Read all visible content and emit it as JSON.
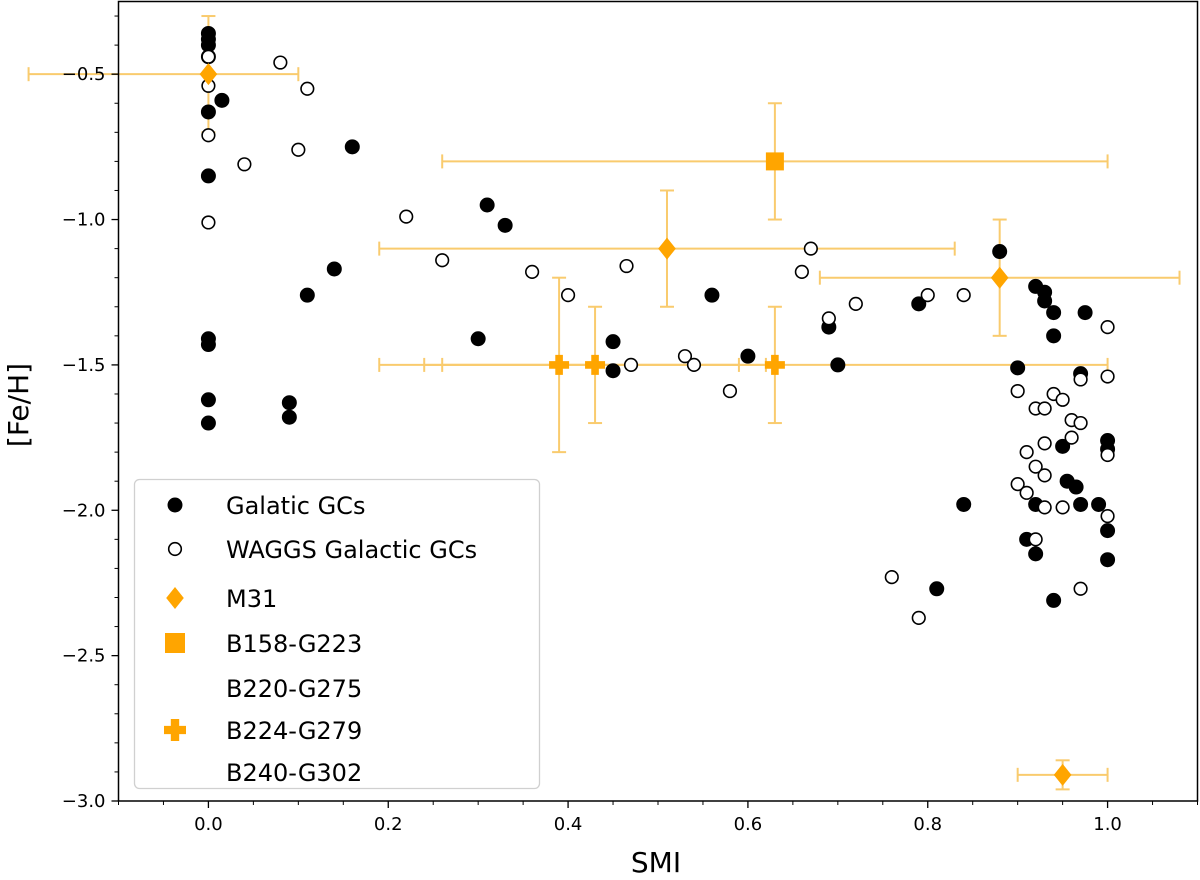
{
  "chart_data": {
    "type": "scatter",
    "xlabel": "SMI",
    "ylabel": "[Fe/H]",
    "xlim": [
      -0.1,
      1.1
    ],
    "ylim": [
      -3.0,
      -0.25
    ],
    "x_ticks": [
      "0.0",
      "0.2",
      "0.4",
      "0.6",
      "0.8",
      "1.0"
    ],
    "y_ticks": [
      "−3.0",
      "−2.5",
      "−2.0",
      "−1.5",
      "−1.0",
      "−0.5"
    ],
    "grid": false,
    "legend_position": "lower-left",
    "colors": {
      "black": "#000000",
      "orange": "#FFA500",
      "errorbar": "#F9CB6E"
    },
    "series": [
      {
        "name": "Galatic GCs",
        "marker": "filled-circle",
        "points": [
          [
            0.0,
            -0.36
          ],
          [
            0.0,
            -0.38
          ],
          [
            0.0,
            -0.4
          ],
          [
            0.0,
            -0.44
          ],
          [
            0.0,
            -0.63
          ],
          [
            0.015,
            -0.59
          ],
          [
            0.0,
            -0.85
          ],
          [
            0.0,
            -1.41
          ],
          [
            0.0,
            -1.43
          ],
          [
            0.0,
            -1.62
          ],
          [
            0.0,
            -1.7
          ],
          [
            0.09,
            -1.63
          ],
          [
            0.09,
            -1.68
          ],
          [
            0.11,
            -1.26
          ],
          [
            0.14,
            -1.17
          ],
          [
            0.16,
            -0.75
          ],
          [
            0.3,
            -1.41
          ],
          [
            0.31,
            -0.95
          ],
          [
            0.33,
            -1.02
          ],
          [
            0.45,
            -1.42
          ],
          [
            0.45,
            -1.52
          ],
          [
            0.56,
            -1.26
          ],
          [
            0.6,
            -1.47
          ],
          [
            0.69,
            -1.37
          ],
          [
            0.7,
            -1.5
          ],
          [
            0.79,
            -1.29
          ],
          [
            0.81,
            -2.27
          ],
          [
            0.84,
            -1.98
          ],
          [
            0.88,
            -1.11
          ],
          [
            0.9,
            -1.51
          ],
          [
            0.91,
            -2.1
          ],
          [
            0.92,
            -1.23
          ],
          [
            0.93,
            -1.25
          ],
          [
            0.93,
            -1.28
          ],
          [
            0.92,
            -1.98
          ],
          [
            0.92,
            -2.15
          ],
          [
            0.94,
            -1.32
          ],
          [
            0.94,
            -1.4
          ],
          [
            0.95,
            -1.78
          ],
          [
            0.955,
            -1.9
          ],
          [
            0.965,
            -1.92
          ],
          [
            0.97,
            -1.53
          ],
          [
            0.97,
            -1.98
          ],
          [
            0.975,
            -1.32
          ],
          [
            0.99,
            -1.98
          ],
          [
            1.0,
            -1.76
          ],
          [
            1.0,
            -1.79
          ],
          [
            1.0,
            -2.07
          ],
          [
            1.0,
            -2.17
          ],
          [
            0.94,
            -2.31
          ]
        ]
      },
      {
        "name": "WAGGS Galactic GCs",
        "marker": "open-circle",
        "points": [
          [
            0.0,
            -0.44
          ],
          [
            0.0,
            -0.54
          ],
          [
            0.0,
            -0.71
          ],
          [
            0.0,
            -1.01
          ],
          [
            0.04,
            -0.81
          ],
          [
            0.08,
            -0.46
          ],
          [
            0.1,
            -0.76
          ],
          [
            0.11,
            -0.55
          ],
          [
            0.22,
            -0.99
          ],
          [
            0.26,
            -1.14
          ],
          [
            0.36,
            -1.18
          ],
          [
            0.4,
            -1.26
          ],
          [
            0.465,
            -1.16
          ],
          [
            0.47,
            -1.5
          ],
          [
            0.53,
            -1.47
          ],
          [
            0.54,
            -1.5
          ],
          [
            0.58,
            -1.59
          ],
          [
            0.66,
            -1.18
          ],
          [
            0.67,
            -1.1
          ],
          [
            0.69,
            -1.34
          ],
          [
            0.72,
            -1.29
          ],
          [
            0.76,
            -2.23
          ],
          [
            0.79,
            -2.37
          ],
          [
            0.8,
            -1.26
          ],
          [
            0.84,
            -1.26
          ],
          [
            0.9,
            -1.59
          ],
          [
            0.9,
            -1.91
          ],
          [
            0.91,
            -1.8
          ],
          [
            0.91,
            -1.94
          ],
          [
            0.92,
            -1.65
          ],
          [
            0.92,
            -1.85
          ],
          [
            0.92,
            -2.1
          ],
          [
            0.93,
            -1.65
          ],
          [
            0.93,
            -1.77
          ],
          [
            0.93,
            -1.88
          ],
          [
            0.93,
            -1.99
          ],
          [
            0.94,
            -1.6
          ],
          [
            0.95,
            -1.62
          ],
          [
            0.95,
            -1.99
          ],
          [
            0.96,
            -1.69
          ],
          [
            0.96,
            -1.75
          ],
          [
            0.97,
            -1.55
          ],
          [
            0.97,
            -1.7
          ],
          [
            0.97,
            -2.27
          ],
          [
            1.0,
            -1.37
          ],
          [
            1.0,
            -1.54
          ],
          [
            1.0,
            -1.81
          ],
          [
            1.0,
            -2.02
          ]
        ]
      },
      {
        "name": "M31",
        "marker": "diamond",
        "points": [
          {
            "x": 0.0,
            "y": -0.5,
            "xerr": [
              0.2,
              0.1
            ],
            "yerr": 0.2
          },
          {
            "x": 0.51,
            "y": -1.1,
            "xerr": 0.32,
            "yerr": 0.2
          },
          {
            "x": 0.88,
            "y": -1.2,
            "xerr": 0.2,
            "yerr": 0.2
          },
          {
            "x": 0.95,
            "y": -2.91,
            "xerr": 0.05,
            "yerr": 0.05
          }
        ]
      },
      {
        "name": "B158-G223",
        "marker": "square",
        "points": [
          {
            "x": 0.63,
            "y": -0.8,
            "xerr": 0.37,
            "yerr": 0.2
          }
        ]
      },
      {
        "name": "B220-G275\nB224-G279\nB240-G302",
        "legend_lines": [
          "B220-G275",
          "B224-G279",
          "B240-G302"
        ],
        "marker": "plus",
        "points": [
          {
            "x": 0.39,
            "y": -1.5,
            "xerr": 0.2,
            "yerr": 0.3
          },
          {
            "x": 0.43,
            "y": -1.5,
            "xerr": 0.19,
            "yerr": 0.2
          },
          {
            "x": 0.63,
            "y": -1.5,
            "xerr": 0.37,
            "yerr": 0.2
          }
        ]
      }
    ]
  }
}
